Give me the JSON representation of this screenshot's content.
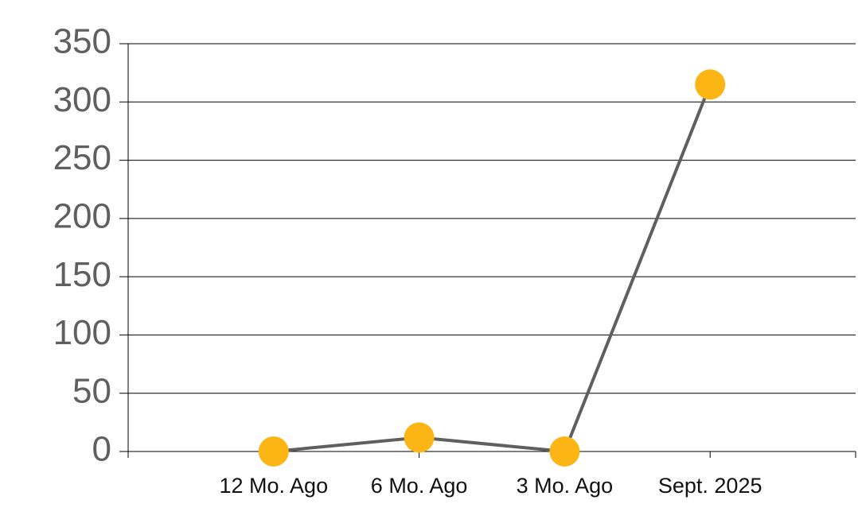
{
  "chart_data": {
    "type": "line",
    "categories": [
      null,
      "12 Mo. Ago",
      "6 Mo. Ago",
      "3 Mo. Ago",
      "Sept. 2025",
      null
    ],
    "series": [
      {
        "name": null,
        "line_color": "#5f5f5f",
        "color": "#fbb616",
        "values": [
          null,
          0,
          12,
          0,
          315,
          null
        ]
      }
    ],
    "ylim": [
      0,
      350
    ],
    "yticks": [
      0,
      50,
      100,
      150,
      200,
      250,
      300,
      350
    ],
    "grid": true
  }
}
